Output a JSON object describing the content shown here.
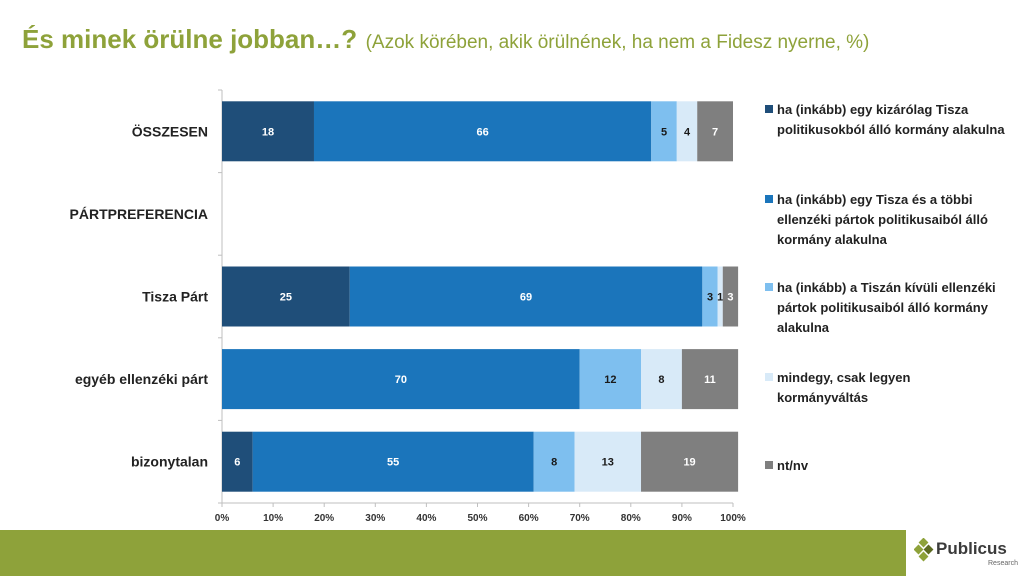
{
  "header": {
    "title": "És minek örülne jobban…?",
    "subtitle": "(Azok körében, akik örülnének, ha nem a Fidesz nyerne, %)"
  },
  "logo": {
    "name": "Publicus",
    "tagline": "Research"
  },
  "chart_data": {
    "type": "bar",
    "orientation": "horizontal",
    "stacked": "100%",
    "categories": [
      "ÖSSZESEN",
      "PÁRTPREFERENCIA",
      "Tisza Párt",
      "egyéb ellenzéki párt",
      "bizonytalan"
    ],
    "series": [
      {
        "name": "ha (inkább) egy kizárólag Tisza politikusokból álló kormány alakulna",
        "color": "#1f4e79",
        "values": [
          18,
          null,
          25,
          null,
          6
        ]
      },
      {
        "name": "ha (inkább) egy Tisza és a többi ellenzéki pártok politikusaiból álló kormány alakulna",
        "color": "#1b75bb",
        "values": [
          66,
          null,
          69,
          70,
          55
        ]
      },
      {
        "name": "ha (inkább) a Tiszán kívüli ellenzéki pártok politikusaiból álló kormány alakulna",
        "color": "#7ebfef",
        "values": [
          5,
          null,
          3,
          12,
          8
        ]
      },
      {
        "name": "mindegy, csak legyen kormányváltás",
        "color": "#d8eaf8",
        "values": [
          4,
          null,
          1,
          8,
          13
        ]
      },
      {
        "name": "nt/nv",
        "color": "#7f7f7f",
        "values": [
          7,
          null,
          3,
          11,
          19
        ]
      }
    ],
    "x_ticks": [
      "0%",
      "10%",
      "20%",
      "30%",
      "40%",
      "50%",
      "60%",
      "70%",
      "80%",
      "90%",
      "100%"
    ],
    "xlim": [
      0,
      100
    ],
    "legend_position": "right"
  }
}
